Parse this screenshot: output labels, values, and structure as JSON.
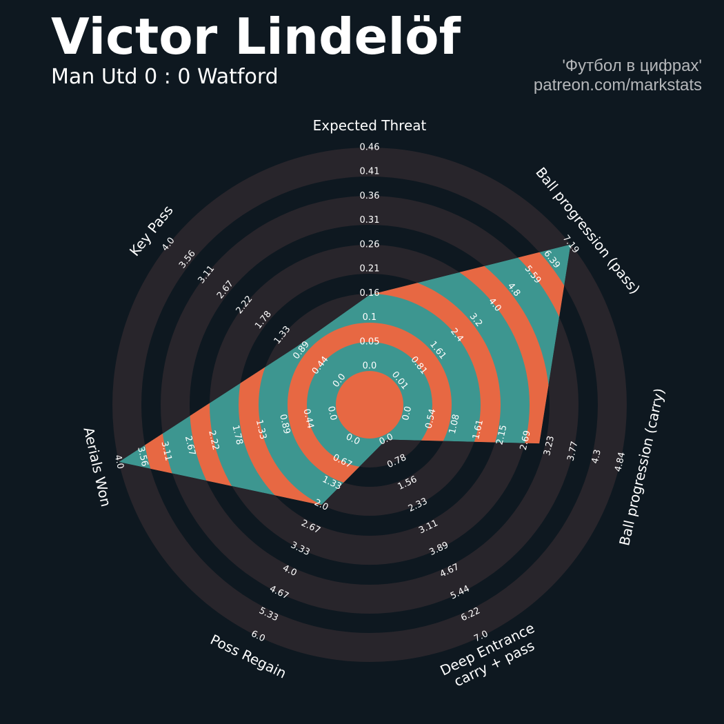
{
  "header": {
    "title": "Victor Lindelöf",
    "subtitle": "Man Utd 0 : 0 Watford",
    "credit_line1": "'Футбол в цифрах'",
    "credit_line2": "patreon.com/markstats"
  },
  "colors": {
    "background": "#0e1820",
    "ring": "#28252b",
    "polygon": "#3d9690",
    "polygon_alt": "#e76843",
    "text": "#ffffff"
  },
  "chart_data": {
    "type": "radar",
    "params": [
      {
        "label": [
          "Expected Threat"
        ],
        "min": 0.0,
        "max": 0.46,
        "ticks": [
          "0.0",
          "0.05",
          "0.1",
          "0.16",
          "0.21",
          "0.26",
          "0.31",
          "0.36",
          "0.41",
          "0.46"
        ],
        "value": 0.15
      },
      {
        "label": [
          "Ball progression (pass)"
        ],
        "min": 0.01,
        "max": 7.19,
        "ticks": [
          "0.01",
          "0.81",
          "1.61",
          "2.4",
          "3.2",
          "4.0",
          "4.8",
          "5.59",
          "6.39",
          "7.19"
        ],
        "value": 7.19
      },
      {
        "label": [
          "Ball progression (carry)"
        ],
        "min": 0.0,
        "max": 4.84,
        "ticks": [
          "0.0",
          "0.54",
          "1.08",
          "1.61",
          "2.15",
          "2.69",
          "3.23",
          "3.77",
          "4.3",
          "4.84"
        ],
        "value": 3.0
      },
      {
        "label": [
          "Deep Entrance",
          "carry + pass"
        ],
        "min": 0.0,
        "max": 7.0,
        "ticks": [
          "0.0",
          "0.78",
          "1.56",
          "2.33",
          "3.11",
          "3.89",
          "4.67",
          "5.44",
          "6.22",
          "7.0"
        ],
        "value": 0.0
      },
      {
        "label": [
          "Poss Regain"
        ],
        "min": 0.0,
        "max": 6.0,
        "ticks": [
          "0.0",
          "0.67",
          "1.33",
          "2.0",
          "2.67",
          "3.33",
          "4.0",
          "4.67",
          "5.33",
          "6.0"
        ],
        "value": 2.0
      },
      {
        "label": [
          "Aerials Won"
        ],
        "min": 0.0,
        "max": 4.0,
        "ticks": [
          "0.0",
          "0.44",
          "0.89",
          "1.33",
          "1.78",
          "2.22",
          "2.67",
          "3.11",
          "3.56",
          "4.0"
        ],
        "value": 4.0
      },
      {
        "label": [
          "Key Pass"
        ],
        "min": 0.0,
        "max": 4.0,
        "ticks": [
          "0.0",
          "0.44",
          "0.89",
          "1.33",
          "1.78",
          "2.22",
          "2.67",
          "3.11",
          "3.56",
          "4.0"
        ],
        "value": 1.0
      }
    ]
  }
}
